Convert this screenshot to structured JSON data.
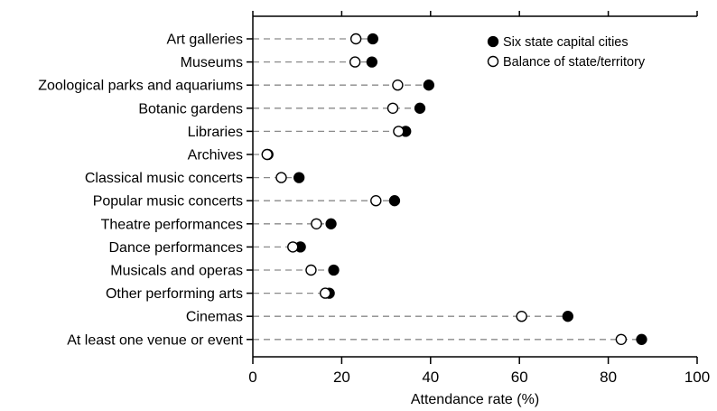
{
  "chart_data": {
    "type": "dot",
    "categories": [
      "Art galleries",
      "Museums",
      "Zoological parks and aquariums",
      "Botanic gardens",
      "Libraries",
      "Archives",
      "Classical music concerts",
      "Popular music concerts",
      "Theatre performances",
      "Dance performances",
      "Musicals and operas",
      "Other performing arts",
      "Cinemas",
      "At least one venue or event"
    ],
    "series": [
      {
        "name": "Six state capital cities",
        "marker": "filled-circle",
        "color": "#000000",
        "values": [
          27.0,
          26.8,
          39.6,
          37.6,
          34.4,
          3.4,
          10.4,
          31.9,
          17.6,
          10.7,
          18.2,
          17.2,
          70.9,
          87.5
        ]
      },
      {
        "name": "Balance of state/territory",
        "marker": "open-circle",
        "color": "#000000",
        "values": [
          23.2,
          23.0,
          32.6,
          31.5,
          32.8,
          3.2,
          6.4,
          27.7,
          14.3,
          9.0,
          13.1,
          16.3,
          60.5,
          82.9
        ]
      }
    ],
    "xlabel": "Attendance rate (%)",
    "ylabel": "",
    "xlim": [
      0,
      100
    ],
    "xticks": [
      0,
      20,
      40,
      60,
      80,
      100
    ],
    "grid": false,
    "connector_style": "dashed",
    "legend_position": "top-right"
  }
}
